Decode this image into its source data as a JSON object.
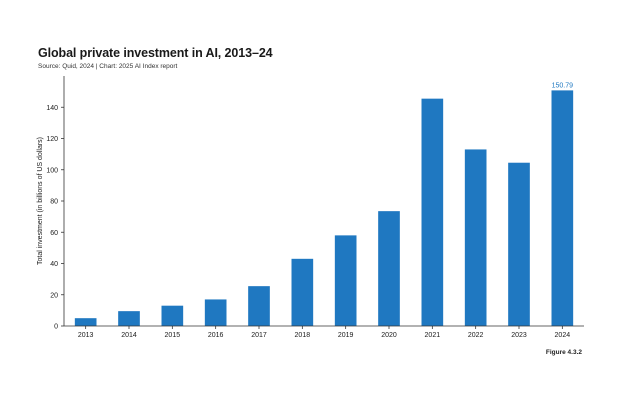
{
  "title": "Global private investment in AI, 2013–24",
  "subtitle": "Source: Quid, 2024 | Chart: 2025 AI Index report",
  "figure_label": "Figure 4.3.2",
  "colors": {
    "bar": "#1f78c1",
    "annotation": "#1f78c1",
    "axis": "#333333",
    "text": "#1a1a1a"
  },
  "chart_data": {
    "type": "bar",
    "title": "Global private investment in AI, 2013–24",
    "xlabel": "",
    "ylabel": "Total investment (in billions of US dollars)",
    "categories": [
      "2013",
      "2014",
      "2015",
      "2016",
      "2017",
      "2018",
      "2019",
      "2020",
      "2021",
      "2022",
      "2023",
      "2024"
    ],
    "values": [
      5,
      9.5,
      13,
      17,
      25.5,
      43,
      58,
      73.5,
      145.5,
      113,
      104.5,
      150.79
    ],
    "ylim": [
      0,
      160
    ],
    "yticks": [
      0,
      20,
      40,
      60,
      80,
      100,
      120,
      140
    ],
    "data_labels": [
      {
        "category": "2024",
        "text": "150.79"
      }
    ],
    "grid": false,
    "legend": "none"
  }
}
